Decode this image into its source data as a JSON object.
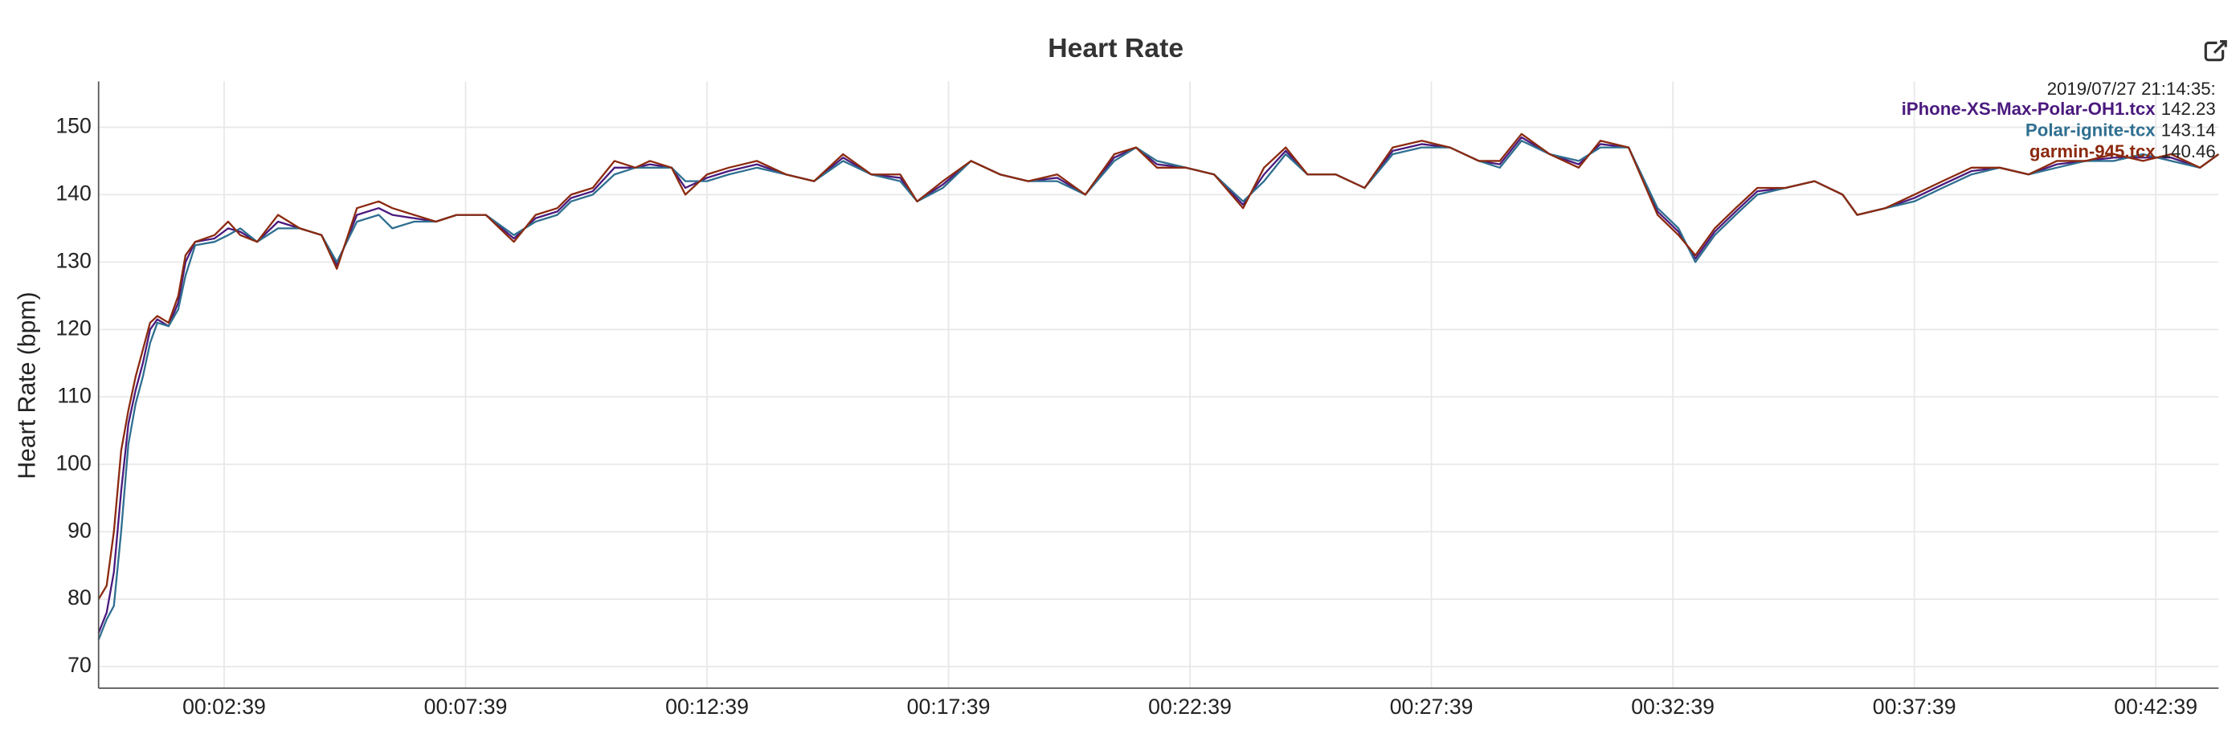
{
  "chart_data": {
    "type": "line",
    "title": "Heart Rate",
    "ylabel": "Heart Rate (bpm)",
    "legend_title": "2019/07/27 21:14:35:",
    "legend_values": [
      142.23,
      143.14,
      140.46
    ],
    "legend": "upper right",
    "grid": true,
    "xlim": [
      3,
      2637
    ],
    "ylim": [
      66.8,
      156.8
    ],
    "yticks": [
      70,
      80,
      90,
      100,
      110,
      120,
      130,
      140,
      150
    ],
    "xticks": [
      {
        "value": 159,
        "label": "00:02:39"
      },
      {
        "value": 459,
        "label": "00:07:39"
      },
      {
        "value": 759,
        "label": "00:12:39"
      },
      {
        "value": 1059,
        "label": "00:17:39"
      },
      {
        "value": 1359,
        "label": "00:22:39"
      },
      {
        "value": 1659,
        "label": "00:27:39"
      },
      {
        "value": 1959,
        "label": "00:32:39"
      },
      {
        "value": 2259,
        "label": "00:37:39"
      },
      {
        "value": 2559,
        "label": "00:42:39"
      }
    ],
    "x": [
      3,
      13,
      22,
      31,
      40,
      49,
      58,
      67,
      76,
      90,
      102,
      111,
      123,
      147,
      164,
      179,
      200,
      226,
      253,
      280,
      299,
      324,
      351,
      368,
      395,
      422,
      448,
      484,
      519,
      546,
      573,
      590,
      617,
      644,
      670,
      688,
      715,
      732,
      759,
      786,
      821,
      857,
      892,
      928,
      963,
      999,
      1020,
      1052,
      1087,
      1123,
      1158,
      1194,
      1229,
      1265,
      1292,
      1318,
      1354,
      1389,
      1425,
      1451,
      1478,
      1505,
      1540,
      1576,
      1611,
      1647,
      1682,
      1718,
      1744,
      1771,
      1806,
      1842,
      1869,
      1904,
      1940,
      1966,
      1987,
      2011,
      2037,
      2064,
      2099,
      2135,
      2170,
      2188,
      2223,
      2259,
      2294,
      2330,
      2365,
      2401,
      2436,
      2472,
      2507,
      2543,
      2578,
      2614,
      2637
    ],
    "series": [
      {
        "name": "iPhone-XS-Max-Polar-OH1.tcx",
        "color": "#4b1a7e",
        "values": [
          75,
          78,
          84,
          96,
          106,
          111,
          115,
          120,
          121.5,
          120.5,
          124,
          130,
          133,
          133.5,
          135,
          134.5,
          133,
          136,
          135,
          134,
          129.5,
          137,
          138,
          137,
          136.5,
          136,
          137,
          137,
          133.5,
          136.5,
          137.5,
          139.5,
          140.5,
          144,
          144,
          144.5,
          144,
          141,
          142.5,
          143.5,
          144.5,
          143,
          142,
          145.5,
          143,
          142.5,
          139,
          141.5,
          145,
          143,
          142,
          142.5,
          140,
          145.5,
          147,
          144.5,
          144,
          143,
          138.5,
          143,
          146.5,
          143,
          143,
          141,
          146.5,
          147.5,
          147,
          145,
          144.5,
          148.5,
          146,
          144.5,
          147.5,
          147,
          137.5,
          134.5,
          130.5,
          134.5,
          137.5,
          140.5,
          141,
          142,
          140,
          137,
          138,
          139.5,
          141.5,
          143.5,
          144,
          143,
          144.5,
          145,
          145.5,
          145.5,
          145.5,
          144,
          146
        ]
      },
      {
        "name": "Polar-ignite-tcx",
        "color": "#2f6f90",
        "values": [
          74,
          77,
          79,
          90,
          103,
          109,
          113,
          118,
          121,
          120.5,
          123,
          128,
          132.5,
          133,
          134,
          135,
          133,
          135,
          135,
          134,
          130,
          136,
          137,
          135,
          136,
          136,
          137,
          137,
          134,
          136,
          137,
          139,
          140,
          143,
          144,
          144,
          144,
          142,
          142,
          143,
          144,
          143,
          142,
          145,
          143,
          142,
          139,
          141,
          145,
          143,
          142,
          142,
          140,
          145,
          147,
          145,
          144,
          143,
          139,
          142,
          146,
          143,
          143,
          141,
          146,
          147,
          147,
          145,
          144,
          148,
          146,
          145,
          147,
          147,
          138,
          135,
          130,
          134,
          137,
          140,
          141,
          142,
          140,
          137,
          138,
          139,
          141,
          143,
          144,
          143,
          144,
          145,
          145,
          146,
          145,
          144,
          146
        ]
      },
      {
        "name": "garmin-945.tcx",
        "color": "#8b2a10",
        "values": [
          80,
          82,
          90,
          102,
          108,
          113,
          117,
          121,
          122,
          121,
          125,
          131,
          133,
          134,
          136,
          134,
          133,
          137,
          135,
          134,
          129,
          138,
          139,
          138,
          137,
          136,
          137,
          137,
          133,
          137,
          138,
          140,
          141,
          145,
          144,
          145,
          144,
          140,
          143,
          144,
          145,
          143,
          142,
          146,
          143,
          143,
          139,
          142,
          145,
          143,
          142,
          143,
          140,
          146,
          147,
          144,
          144,
          143,
          138,
          144,
          147,
          143,
          143,
          141,
          147,
          148,
          147,
          145,
          145,
          149,
          146,
          144,
          148,
          147,
          137,
          134,
          131,
          135,
          138,
          141,
          141,
          142,
          140,
          137,
          138,
          140,
          142,
          144,
          144,
          143,
          145,
          145,
          146,
          145,
          146,
          144,
          146
        ]
      }
    ]
  }
}
